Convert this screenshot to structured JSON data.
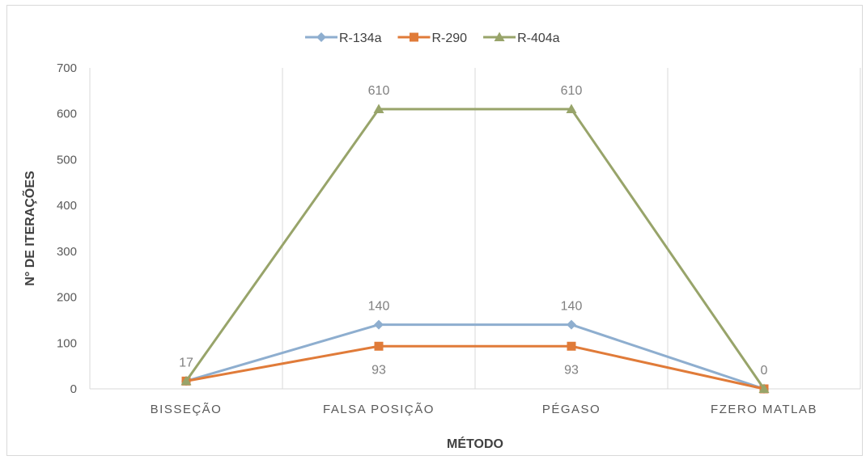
{
  "chart_data": {
    "type": "line",
    "title": "",
    "xlabel": "MÉTODO",
    "ylabel": "N° DE ITERAÇÕES",
    "categories": [
      "BISSEÇÃO",
      "FALSA POSIÇÃO",
      "PÉGASO",
      "FZERO MATLAB"
    ],
    "ylim": [
      0,
      700
    ],
    "yticks": [
      0,
      100,
      200,
      300,
      400,
      500,
      600,
      700
    ],
    "grid": "vertical",
    "legend_position": "top",
    "series": [
      {
        "name": "R-134a",
        "values": [
          17,
          140,
          140,
          0
        ],
        "color": "#8eaecf",
        "marker": "diamond"
      },
      {
        "name": "R-290",
        "values": [
          17,
          93,
          93,
          0
        ],
        "color": "#e07b39",
        "marker": "square"
      },
      {
        "name": "R-404a",
        "values": [
          17,
          610,
          610,
          0
        ],
        "color": "#98a46a",
        "marker": "triangle"
      }
    ],
    "data_labels": [
      {
        "series": "R-134a",
        "category": "BISSEÇÃO",
        "text": "17",
        "position": "above"
      },
      {
        "series": "R-404a",
        "category": "FALSA POSIÇÃO",
        "text": "610",
        "position": "above"
      },
      {
        "series": "R-404a",
        "category": "PÉGASO",
        "text": "610",
        "position": "above"
      },
      {
        "series": "R-134a",
        "category": "FALSA POSIÇÃO",
        "text": "140",
        "position": "above"
      },
      {
        "series": "R-134a",
        "category": "PÉGASO",
        "text": "140",
        "position": "above"
      },
      {
        "series": "R-290",
        "category": "FALSA POSIÇÃO",
        "text": "93",
        "position": "below"
      },
      {
        "series": "R-290",
        "category": "PÉGASO",
        "text": "93",
        "position": "below"
      },
      {
        "series": "R-404a",
        "category": "FZERO MATLAB",
        "text": "0",
        "position": "above"
      }
    ]
  }
}
